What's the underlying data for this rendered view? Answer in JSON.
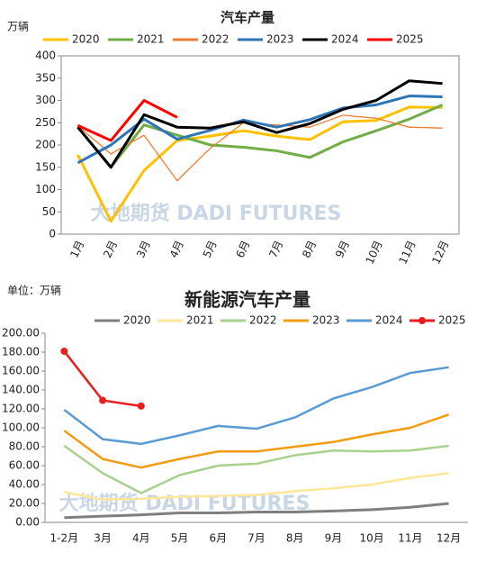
{
  "chart_data": [
    {
      "type": "line",
      "title": "汽车产量",
      "y_unit": "万辆",
      "watermark": "大地期货 DADI FUTURES",
      "categories": [
        "1月",
        "2月",
        "3月",
        "4月",
        "5月",
        "6月",
        "7月",
        "8月",
        "9月",
        "10月",
        "11月",
        "12月"
      ],
      "ylim": [
        0,
        400
      ],
      "yticks": [
        0,
        50,
        100,
        150,
        200,
        250,
        300,
        350,
        400
      ],
      "grid": false,
      "legend": "top",
      "series": [
        {
          "name": "2020",
          "color": "#FFC000",
          "values": [
            178,
            29,
            143,
            210,
            220,
            232,
            220,
            212,
            252,
            255,
            285,
            284
          ]
        },
        {
          "name": "2021",
          "color": "#70AD47",
          "values": [
            240,
            150,
            245,
            222,
            200,
            195,
            187,
            172,
            207,
            232,
            258,
            290
          ]
        },
        {
          "name": "2022",
          "color": "#ED7D31",
          "values": [
            243,
            180,
            222,
            120,
            193,
            250,
            245,
            240,
            267,
            260,
            240,
            238
          ]
        },
        {
          "name": "2023",
          "color": "#2E75B6",
          "values": [
            160,
            200,
            258,
            213,
            233,
            256,
            240,
            257,
            283,
            290,
            310,
            308
          ]
        },
        {
          "name": "2024",
          "color": "#000000",
          "values": [
            240,
            150,
            268,
            240,
            238,
            252,
            228,
            248,
            280,
            300,
            344,
            338
          ]
        },
        {
          "name": "2025",
          "color": "#FF0000",
          "values": [
            244,
            210,
            300,
            262,
            null,
            null,
            null,
            null,
            null,
            null,
            null,
            null
          ]
        }
      ]
    },
    {
      "type": "line",
      "title": "新能源汽车产量",
      "y_unit": "单位：万辆",
      "watermark": "大地期货 DADI FUTURES",
      "categories": [
        "1-2月",
        "3月",
        "4月",
        "5月",
        "6月",
        "7月",
        "8月",
        "9月",
        "10月",
        "11月",
        "12月"
      ],
      "ylim": [
        0,
        200
      ],
      "yticks": [
        {
          "value": 0,
          "label": "0.00"
        },
        {
          "value": 20,
          "label": "20.00"
        },
        {
          "value": 40,
          "label": "40.00"
        },
        {
          "value": 60,
          "label": "60.00"
        },
        {
          "value": 80,
          "label": "80.00"
        },
        {
          "value": 100,
          "label": "100.00"
        },
        {
          "value": 120,
          "label": "120.00"
        },
        {
          "value": 140,
          "label": "140.00"
        },
        {
          "value": 160,
          "label": "160.00"
        },
        {
          "value": 180,
          "label": "180.00"
        },
        {
          "value": 200,
          "label": "200.00"
        }
      ],
      "grid": false,
      "legend": "top",
      "series": [
        {
          "name": "2020",
          "color": "#7F7F7F",
          "values": [
            5,
            6.5,
            8,
            10,
            10,
            11,
            11,
            12,
            13.5,
            16,
            20
          ]
        },
        {
          "name": "2021",
          "color": "#FFE699",
          "values": [
            32,
            24,
            25,
            27,
            28,
            29,
            33,
            36,
            40,
            47,
            52
          ]
        },
        {
          "name": "2022",
          "color": "#A9D18E",
          "values": [
            81,
            52,
            31,
            50,
            60,
            62,
            71,
            76,
            75,
            76,
            81
          ]
        },
        {
          "name": "2023",
          "color": "#F39C12",
          "values": [
            97,
            67,
            58,
            67,
            75,
            75,
            80,
            85,
            93,
            100,
            114
          ]
        },
        {
          "name": "2024",
          "color": "#5B9BD5",
          "values": [
            119,
            88,
            83,
            92,
            102,
            99,
            111,
            131,
            143,
            158,
            164
          ]
        },
        {
          "name": "2025",
          "color": "#E81E1E",
          "marker": true,
          "values": [
            181,
            129,
            123,
            null,
            null,
            null,
            null,
            null,
            null,
            null,
            null
          ]
        }
      ]
    }
  ]
}
